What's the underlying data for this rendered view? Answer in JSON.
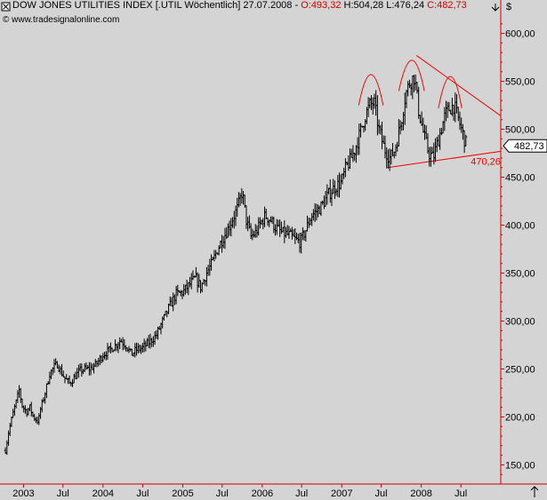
{
  "header": {
    "title": "DOW JONES UTILITIES INDEX [.UTIL  Wöchentlich] 27.07.2008 -",
    "open": "O:493,32",
    "high": "H:504,28",
    "low": "L:476,24",
    "close": "C:482,73",
    "watermark": "© www.tradesignalonline.com",
    "currency": "$"
  },
  "colors": {
    "background": "#d4d4d4",
    "axis": "#cc0000",
    "price": "#000000",
    "annotation": "#ee0000",
    "label_bg": "#ffffff"
  },
  "icons": [
    "close-box-icon",
    "down-arrow-icon",
    "up-arrow-icon"
  ],
  "chart_data": {
    "type": "ohlc",
    "title": "DOW JONES UTILITIES INDEX [.UTIL  Wöchentlich] 27.07.2008",
    "xlabel": "",
    "ylabel": "$",
    "ylim": [
      130,
      620
    ],
    "xlim": [
      "2002-09-15",
      "2008-12-31"
    ],
    "grid": false,
    "yticks": [
      "150,00",
      "200,00",
      "250,00",
      "300,00",
      "350,00",
      "400,00",
      "450,00",
      "500,00",
      "550,00",
      "600,00"
    ],
    "ytick_values": [
      150,
      200,
      250,
      300,
      350,
      400,
      450,
      500,
      550,
      600
    ],
    "xticks": [
      {
        "label": "2003",
        "date": "2003-01-01"
      },
      {
        "label": "Jul",
        "date": "2003-07-01"
      },
      {
        "label": "2004",
        "date": "2004-01-01"
      },
      {
        "label": "Jul",
        "date": "2004-07-01"
      },
      {
        "label": "2005",
        "date": "2005-01-01"
      },
      {
        "label": "Jul",
        "date": "2005-07-01"
      },
      {
        "label": "2006",
        "date": "2006-01-01"
      },
      {
        "label": "Jul",
        "date": "2006-07-01"
      },
      {
        "label": "2007",
        "date": "2007-01-01"
      },
      {
        "label": "Jul",
        "date": "2007-07-01"
      },
      {
        "label": "2008",
        "date": "2008-01-01"
      },
      {
        "label": "Jul",
        "date": "2008-07-01"
      }
    ],
    "price_path": [
      [
        "2002-10-10",
        165
      ],
      [
        "2002-10-25",
        185
      ],
      [
        "2002-11-15",
        205
      ],
      [
        "2002-12-01",
        218
      ],
      [
        "2002-12-12",
        228
      ],
      [
        "2002-12-25",
        212
      ],
      [
        "2003-01-15",
        205
      ],
      [
        "2003-01-30",
        210
      ],
      [
        "2003-02-15",
        200
      ],
      [
        "2003-03-10",
        195
      ],
      [
        "2003-03-20",
        208
      ],
      [
        "2003-04-10",
        225
      ],
      [
        "2003-05-01",
        245
      ],
      [
        "2003-05-20",
        252
      ],
      [
        "2003-06-05",
        255
      ],
      [
        "2003-06-20",
        248
      ],
      [
        "2003-07-10",
        240
      ],
      [
        "2003-08-01",
        235
      ],
      [
        "2003-08-25",
        242
      ],
      [
        "2003-09-15",
        248
      ],
      [
        "2003-10-10",
        250
      ],
      [
        "2003-11-01",
        250
      ],
      [
        "2003-12-01",
        255
      ],
      [
        "2004-01-01",
        265
      ],
      [
        "2004-02-01",
        270
      ],
      [
        "2004-03-01",
        275
      ],
      [
        "2004-03-20",
        280
      ],
      [
        "2004-04-15",
        275
      ],
      [
        "2004-05-10",
        265
      ],
      [
        "2004-06-01",
        270
      ],
      [
        "2004-07-01",
        272
      ],
      [
        "2004-08-01",
        278
      ],
      [
        "2004-09-01",
        285
      ],
      [
        "2004-10-01",
        300
      ],
      [
        "2004-11-01",
        315
      ],
      [
        "2004-12-01",
        328
      ],
      [
        "2005-01-01",
        330
      ],
      [
        "2005-02-01",
        338
      ],
      [
        "2005-03-01",
        345
      ],
      [
        "2005-03-25",
        335
      ],
      [
        "2005-04-20",
        350
      ],
      [
        "2005-05-15",
        360
      ],
      [
        "2005-06-10",
        375
      ],
      [
        "2005-07-01",
        385
      ],
      [
        "2005-08-01",
        398
      ],
      [
        "2005-09-10",
        418
      ],
      [
        "2005-10-01",
        435
      ],
      [
        "2005-10-20",
        405
      ],
      [
        "2005-11-10",
        388
      ],
      [
        "2005-12-01",
        392
      ],
      [
        "2005-12-20",
        400
      ],
      [
        "2006-01-15",
        410
      ],
      [
        "2006-02-10",
        405
      ],
      [
        "2006-03-01",
        398
      ],
      [
        "2006-04-01",
        392
      ],
      [
        "2006-05-01",
        390
      ],
      [
        "2006-06-01",
        385
      ],
      [
        "2006-06-25",
        382
      ],
      [
        "2006-07-20",
        395
      ],
      [
        "2006-08-15",
        410
      ],
      [
        "2006-09-10",
        415
      ],
      [
        "2006-10-01",
        420
      ],
      [
        "2006-11-01",
        432
      ],
      [
        "2006-12-01",
        440
      ],
      [
        "2007-01-01",
        445
      ],
      [
        "2007-01-20",
        460
      ],
      [
        "2007-02-10",
        468
      ],
      [
        "2007-03-01",
        478
      ],
      [
        "2007-03-25",
        495
      ],
      [
        "2007-04-20",
        515
      ],
      [
        "2007-05-10",
        525
      ],
      [
        "2007-05-30",
        528
      ],
      [
        "2007-06-20",
        500
      ],
      [
        "2007-07-15",
        480
      ],
      [
        "2007-08-10",
        470
      ],
      [
        "2007-09-01",
        478
      ],
      [
        "2007-10-01",
        508
      ],
      [
        "2007-10-20",
        535
      ],
      [
        "2007-11-10",
        550
      ],
      [
        "2007-12-01",
        555
      ],
      [
        "2007-12-20",
        520
      ],
      [
        "2008-01-15",
        492
      ],
      [
        "2008-02-05",
        475
      ],
      [
        "2008-02-25",
        470
      ],
      [
        "2008-03-20",
        490
      ],
      [
        "2008-04-20",
        515
      ],
      [
        "2008-05-10",
        522
      ],
      [
        "2008-05-30",
        525
      ],
      [
        "2008-06-20",
        510
      ],
      [
        "2008-07-10",
        495
      ],
      [
        "2008-07-27",
        482.73
      ]
    ],
    "annotations": {
      "neckline": {
        "from": [
          "2007-07-30",
          460
        ],
        "to": [
          "2008-12-31",
          477
        ]
      },
      "downtrend": {
        "from": [
          "2007-12-10",
          577
        ],
        "to": [
          "2008-12-31",
          514
        ]
      },
      "arcs": [
        {
          "from": [
            "2007-03-20",
            525
          ],
          "peak": [
            "2007-05-15",
            557
          ],
          "to": [
            "2007-07-10",
            525
          ]
        },
        {
          "from": [
            "2007-09-20",
            540
          ],
          "peak": [
            "2007-11-20",
            572
          ],
          "to": [
            "2008-01-15",
            540
          ]
        },
        {
          "from": [
            "2008-03-20",
            522
          ],
          "peak": [
            "2008-05-15",
            555
          ],
          "to": [
            "2008-07-05",
            522
          ]
        }
      ]
    },
    "labels": [
      {
        "text": "470,26",
        "value": 470.26,
        "date": "2008-08-15"
      },
      {
        "text": "482,73",
        "value": 482.73,
        "marker": true
      }
    ]
  }
}
